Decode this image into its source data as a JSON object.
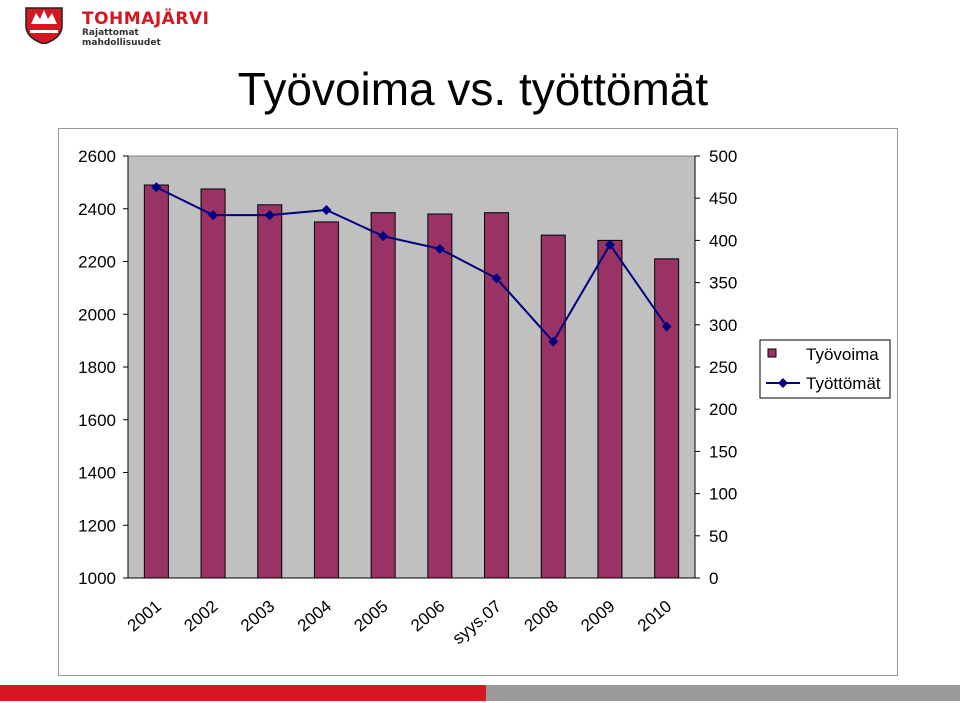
{
  "header": {
    "brand": "TOHMAJÄRVI",
    "tagline": "Rajattomat mahdollisuudet",
    "brand_color": "#d3191f"
  },
  "title": "Työvoima vs. työttömät",
  "chart_data": {
    "type": "bar",
    "categories": [
      "2001",
      "2002",
      "2003",
      "2004",
      "2005",
      "2006",
      "syys.07",
      "2008",
      "2009",
      "2010"
    ],
    "series": [
      {
        "name": "Työvoima",
        "kind": "bar",
        "axis": "left",
        "color": "#993366",
        "values": [
          2490,
          2475,
          2415,
          2350,
          2385,
          2380,
          2385,
          2300,
          2280,
          2210
        ]
      },
      {
        "name": "Työttömät",
        "kind": "line",
        "axis": "right",
        "color": "#000080",
        "values": [
          463,
          430,
          430,
          436,
          405,
          390,
          355,
          280,
          395,
          298
        ]
      }
    ],
    "ylim_left": [
      1000,
      2600
    ],
    "yticks_left": [
      1000,
      1200,
      1400,
      1600,
      1800,
      2000,
      2200,
      2400,
      2600
    ],
    "ylim_right": [
      0,
      500
    ],
    "yticks_right": [
      0,
      50,
      100,
      150,
      200,
      250,
      300,
      350,
      400,
      450,
      500
    ],
    "plot_background": "#c0c0c0",
    "grid": false,
    "legend_position": "right"
  }
}
